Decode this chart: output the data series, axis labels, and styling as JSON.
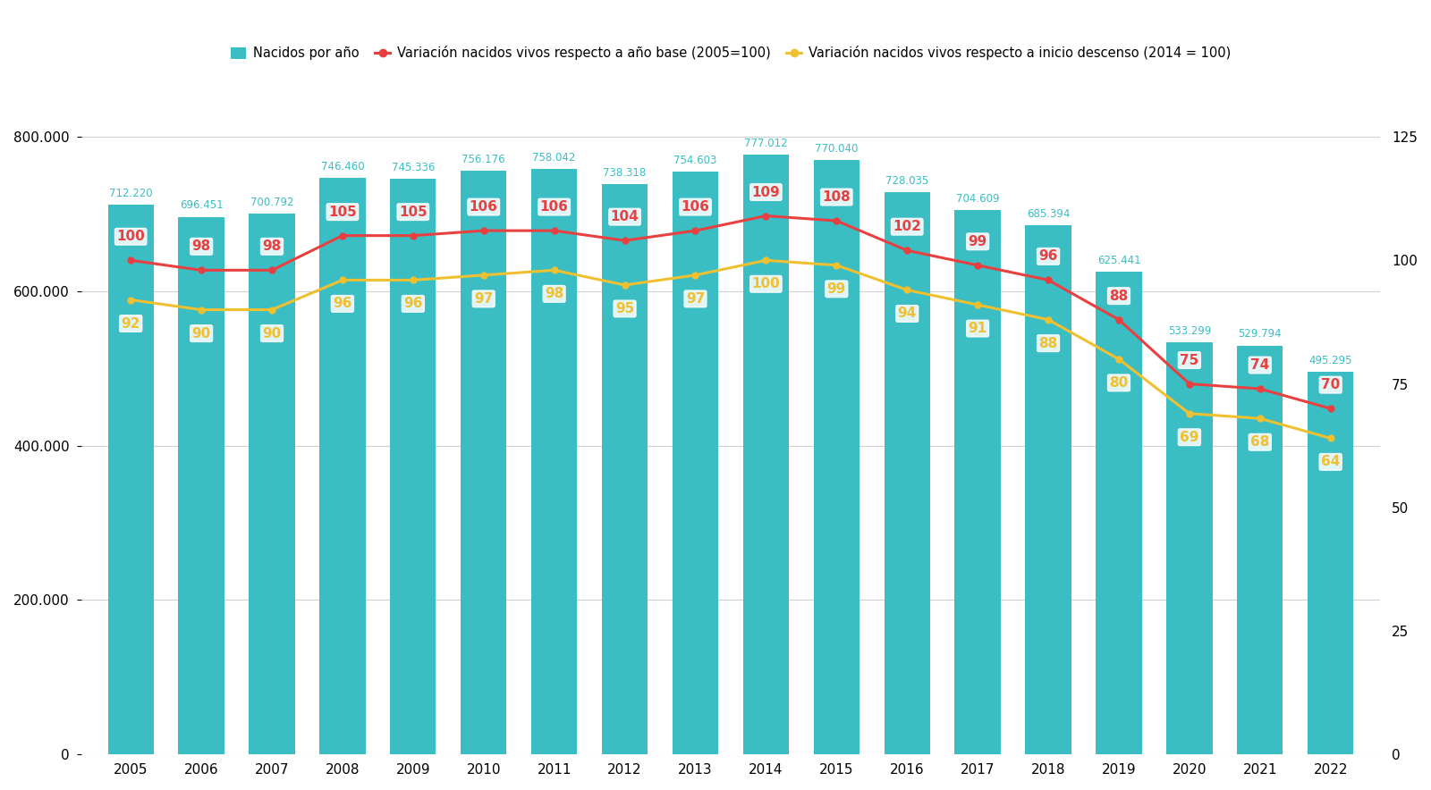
{
  "years": [
    2005,
    2006,
    2007,
    2008,
    2009,
    2010,
    2011,
    2012,
    2013,
    2014,
    2015,
    2016,
    2017,
    2018,
    2019,
    2020,
    2021,
    2022
  ],
  "births": [
    712220,
    696451,
    700792,
    746460,
    745336,
    756176,
    758042,
    738318,
    754603,
    777012,
    770040,
    728035,
    704609,
    685394,
    625441,
    533299,
    529794,
    495295
  ],
  "var_base": [
    100,
    98,
    98,
    105,
    105,
    106,
    106,
    104,
    106,
    109,
    108,
    102,
    99,
    96,
    88,
    75,
    74,
    70
  ],
  "var_descent": [
    92,
    90,
    90,
    96,
    96,
    97,
    98,
    95,
    97,
    100,
    99,
    94,
    91,
    88,
    80,
    69,
    68,
    64
  ],
  "bar_color": "#3bbdc4",
  "line_base_color": "#e84040",
  "line_descent_color": "#f0c030",
  "bar_label_color": "#3bbdc4",
  "bg_color": "#ffffff",
  "ylim_left": [
    0,
    880000
  ],
  "ylim_right": [
    0,
    137.5
  ],
  "yticks_left": [
    0,
    200000,
    400000,
    600000,
    800000
  ],
  "yticks_right": [
    0,
    25,
    50,
    75,
    100,
    125
  ],
  "legend_labels": [
    "Nacidos por año",
    "Variación nacidos vivos respecto a año base (2005=100)",
    "Variación nacidos vivos respecto a inicio descenso (2014 = 100)"
  ]
}
